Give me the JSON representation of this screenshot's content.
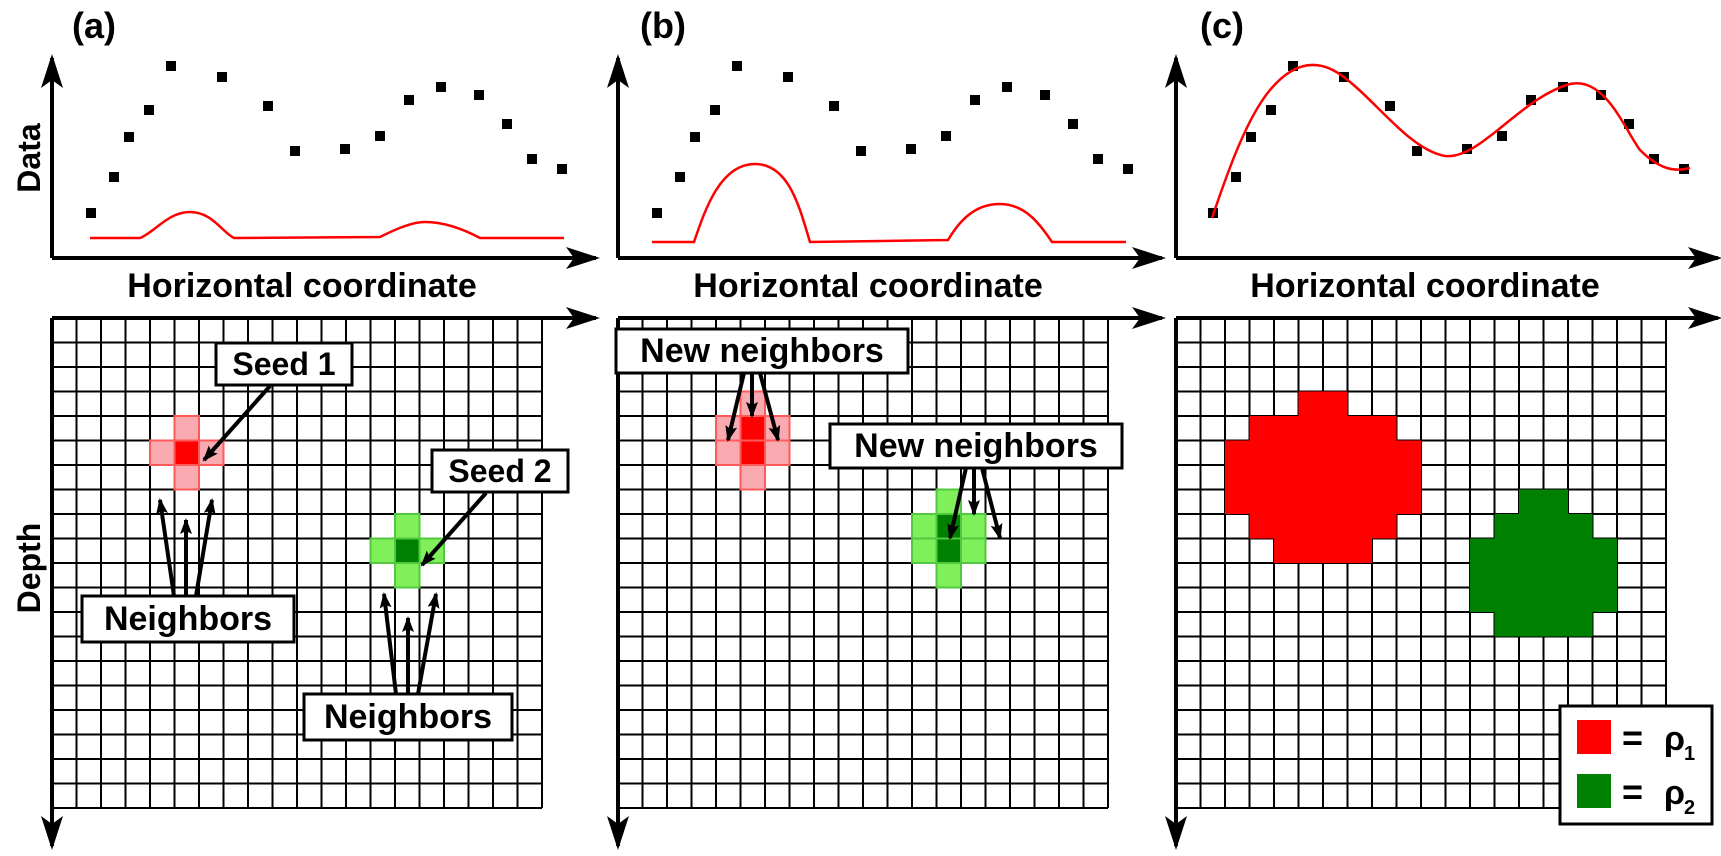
{
  "panels": [
    {
      "key": "a",
      "label": "(a)",
      "ylabel": "Data",
      "xlabel": "Horizontal coordinate",
      "depth_label": "Depth",
      "callouts": [
        {
          "id": "seed-1",
          "text": "Seed 1"
        },
        {
          "id": "seed-2",
          "text": "Seed 2"
        },
        {
          "id": "neighbors-1",
          "text": "Neighbors"
        },
        {
          "id": "neighbors-2",
          "text": "Neighbors"
        }
      ]
    },
    {
      "key": "b",
      "label": "(b)",
      "xlabel": "Horizontal coordinate",
      "callouts": [
        {
          "id": "new-neighbors-1",
          "text": "New neighbors"
        },
        {
          "id": "new-neighbors-2",
          "text": "New neighbors"
        }
      ]
    },
    {
      "key": "c",
      "label": "(c)",
      "xlabel": "Horizontal coordinate",
      "callouts": []
    }
  ],
  "legend": {
    "items": [
      {
        "swatch_color": "#ff0000",
        "equals": "=",
        "symbol": "ρ",
        "subscript": "1"
      },
      {
        "swatch_color": "#008000",
        "equals": "=",
        "symbol": "ρ",
        "subscript": "2"
      }
    ]
  },
  "colors": {
    "region_1": "#ff0000",
    "region_1_light": "#f9a9b0",
    "region_2": "#008000",
    "region_2_light": "#7fef5a",
    "prediction_curve": "#ff0000",
    "data_points": "#000000",
    "grid": "#000000"
  }
}
